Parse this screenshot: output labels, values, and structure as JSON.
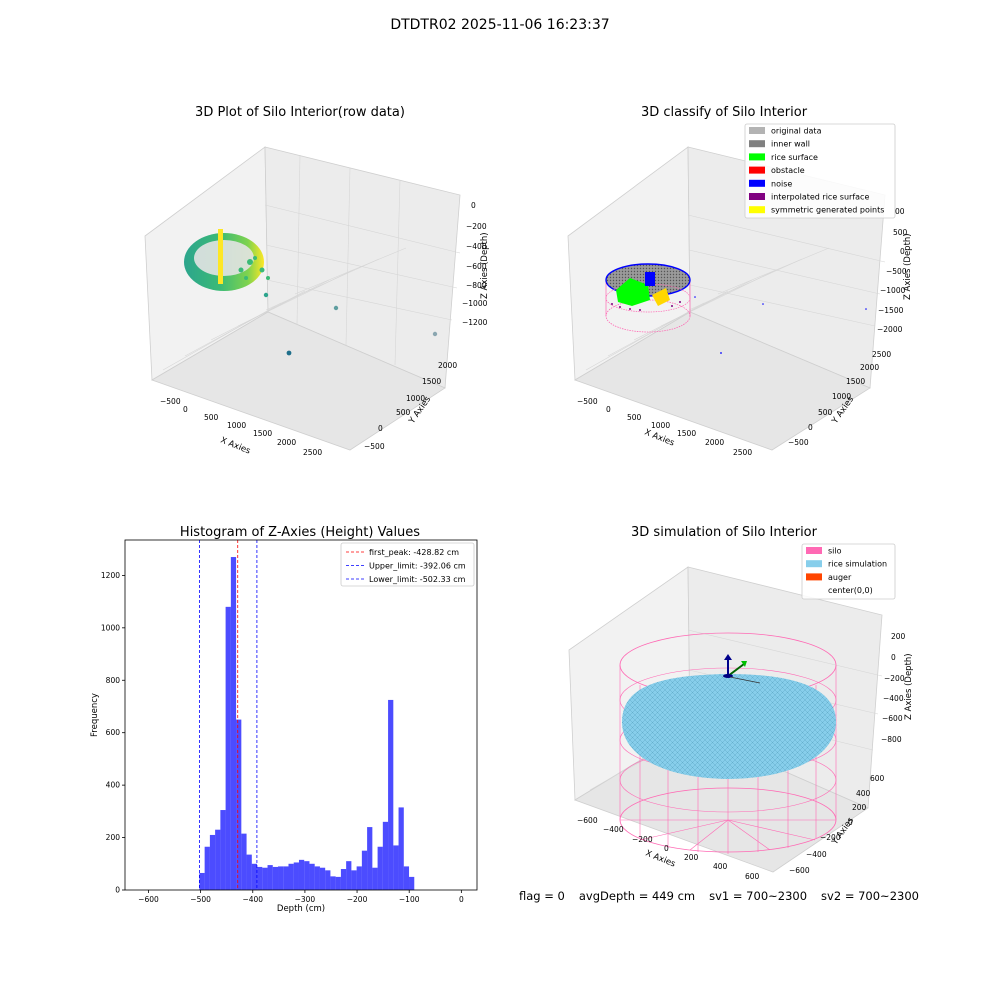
{
  "figure": {
    "suptitle": "DTDTR02 2025-11-06 16:23:37",
    "footer": {
      "flag": "flag = 0",
      "avg_depth": "avgDepth = 449 cm",
      "sv1": "sv1 = 700~2300",
      "sv2": "sv2 = 700~2300"
    }
  },
  "chart_data": [
    {
      "id": "raw",
      "type": "scatter",
      "title": "3D Plot of Silo Interior(row data)",
      "xlabel": "X Axies",
      "ylabel": "Y Axies",
      "zlabel": "Z Axies (Depth)",
      "x_ticks": [
        "−500",
        "0",
        "500",
        "1000",
        "1500",
        "2000",
        "2500"
      ],
      "y_ticks": [
        "−500",
        "0",
        "500",
        "1000",
        "1500",
        "2000"
      ],
      "z_ticks": [
        "0",
        "−200",
        "−400",
        "−600",
        "−800",
        "−1000",
        "−1200"
      ],
      "colormap": [
        "#2ca58d",
        "#3bba76",
        "#7fd34e",
        "#fde725"
      ]
    },
    {
      "id": "classify",
      "type": "scatter",
      "title": "3D classify of Silo Interior",
      "xlabel": "X Axies",
      "ylabel": "Y Axies",
      "zlabel": "Z Axies (Depth)",
      "x_ticks": [
        "−500",
        "0",
        "500",
        "1000",
        "1500",
        "2000",
        "2500"
      ],
      "y_ticks": [
        "−500",
        "0",
        "500",
        "1000",
        "1500",
        "2000",
        "2500"
      ],
      "z_ticks": [
        "500",
        "0",
        "−500",
        "−1000",
        "−1500",
        "−2000"
      ],
      "z_overflow_tick": "00",
      "legend": [
        {
          "label": "original data",
          "color": "#b3b3b3"
        },
        {
          "label": "inner wall",
          "color": "#808080"
        },
        {
          "label": "rice surface",
          "color": "#00ff00"
        },
        {
          "label": "obstacle",
          "color": "#ff0000"
        },
        {
          "label": "noise",
          "color": "#0000ff"
        },
        {
          "label": "interpolated rice surface",
          "color": "#800080"
        },
        {
          "label": "symmetric generated points",
          "color": "#ffff00"
        }
      ],
      "legend_position": "upper-right"
    },
    {
      "id": "histogram",
      "type": "bar",
      "title": "Histogram of Z-Axies (Height) Values",
      "xlabel": "Depth (cm)",
      "ylabel": "Frequency",
      "xlim": [
        -645,
        30
      ],
      "ylim": [
        0,
        1335
      ],
      "x_ticks": [
        -600,
        -500,
        -400,
        -300,
        -200,
        -100,
        0
      ],
      "y_ticks": [
        0,
        200,
        400,
        600,
        800,
        1000,
        1200
      ],
      "bar_color": "#0000ff",
      "bin_width": 10.05,
      "bin_start": -502.33,
      "counts": [
        65,
        165,
        210,
        230,
        305,
        1080,
        1270,
        650,
        215,
        135,
        100,
        88,
        85,
        95,
        88,
        90,
        90,
        100,
        105,
        115,
        110,
        100,
        90,
        85,
        75,
        52,
        50,
        80,
        110,
        75,
        90,
        150,
        240,
        85,
        165,
        260,
        725,
        170,
        315,
        90,
        50
      ],
      "lines": [
        {
          "label": "first_peak: -428.82 cm",
          "value": -428.82,
          "color": "#ff0000"
        },
        {
          "label": "Upper_limit: -392.06 cm",
          "value": -392.06,
          "color": "#0000ff"
        },
        {
          "label": "Lower_limit: -502.33 cm",
          "value": -502.33,
          "color": "#0000ff"
        }
      ],
      "legend_position": "upper-right"
    },
    {
      "id": "simulation",
      "type": "scatter",
      "title": "3D simulation of Silo Interior",
      "xlabel": "X Axies",
      "ylabel": "Y Axies",
      "zlabel": "Z Axies (Depth)",
      "x_ticks": [
        "−600",
        "−400",
        "−200",
        "0",
        "200",
        "400",
        "600"
      ],
      "y_ticks": [
        "−600",
        "−400",
        "−200",
        "0",
        "200",
        "400",
        "600"
      ],
      "z_ticks": [
        "200",
        "0",
        "−200",
        "−400",
        "−600",
        "−800"
      ],
      "legend": [
        {
          "label": "silo",
          "color": "#ff69b4"
        },
        {
          "label": "rice simulation",
          "color": "#87ceeb"
        },
        {
          "label": "auger",
          "color": "#ff4500"
        },
        {
          "label": "center(0,0)",
          "color": "#ffffff"
        }
      ],
      "legend_position": "upper-right"
    }
  ]
}
